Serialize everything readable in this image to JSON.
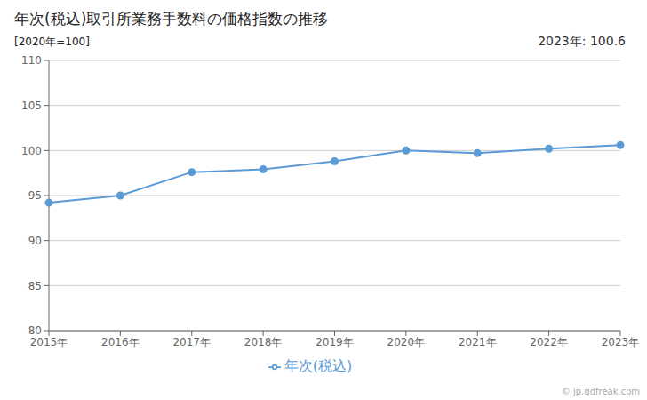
{
  "chart_data": {
    "type": "line",
    "title": "年次(税込)取引所業務手数料の価格指数の推移",
    "subtitle": "[2020年=100]",
    "annotation": "2023年: 100.6",
    "watermark": "© jp.gdfreak.com",
    "categories": [
      "2015年",
      "2016年",
      "2017年",
      "2018年",
      "2019年",
      "2020年",
      "2021年",
      "2022年",
      "2023年"
    ],
    "series": [
      {
        "name": "年次(税込)",
        "color": "#5b9bd5",
        "marker": "circle",
        "values": [
          94.2,
          95.0,
          97.6,
          97.9,
          98.8,
          100.0,
          99.7,
          100.2,
          100.6
        ]
      }
    ],
    "ylim": [
      80,
      110
    ],
    "yticks": [
      80,
      85,
      90,
      95,
      100,
      105,
      110
    ],
    "grid": true,
    "legend": "bottom"
  }
}
